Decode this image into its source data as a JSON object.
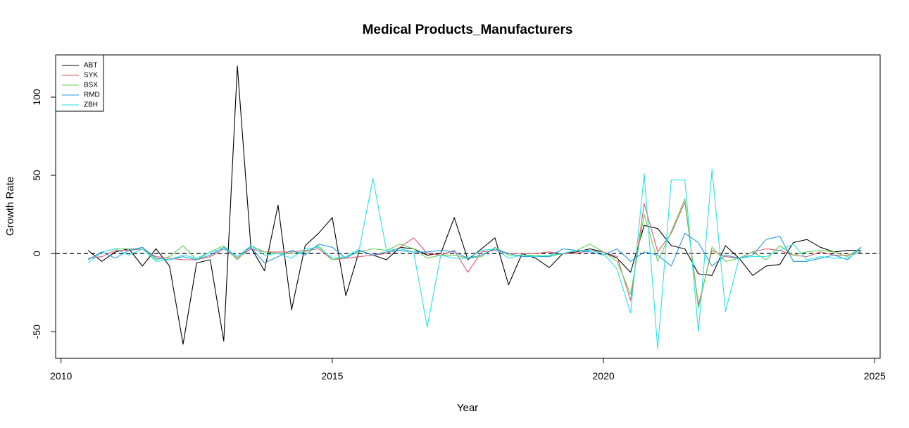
{
  "chart_data": {
    "type": "line",
    "title": "Medical Products_Manufacturers",
    "xlabel": "Year",
    "ylabel": "Growth Rate",
    "xlim": [
      2009.9,
      2025.1
    ],
    "ylim": [
      -67,
      127
    ],
    "x_ticks": [
      2010,
      2015,
      2020,
      2025
    ],
    "y_ticks": [
      -50,
      0,
      50,
      100
    ],
    "reference_line": 0,
    "legend_position": "top-left",
    "x": [
      2010.5,
      2010.75,
      2011,
      2011.25,
      2011.5,
      2011.75,
      2012,
      2012.25,
      2012.5,
      2012.75,
      2013,
      2013.25,
      2013.5,
      2013.75,
      2014,
      2014.25,
      2014.5,
      2014.75,
      2015,
      2015.25,
      2015.5,
      2015.75,
      2016,
      2016.25,
      2016.5,
      2016.75,
      2017,
      2017.25,
      2017.5,
      2017.75,
      2018,
      2018.25,
      2018.5,
      2018.75,
      2019,
      2019.25,
      2019.5,
      2019.75,
      2020,
      2020.25,
      2020.5,
      2020.75,
      2021,
      2021.25,
      2021.5,
      2021.75,
      2022,
      2022.25,
      2022.5,
      2022.75,
      2023,
      2023.25,
      2023.5,
      2023.75,
      2024,
      2024.25,
      2024.5,
      2024.75
    ],
    "series": [
      {
        "name": "ABT",
        "color": "#000000",
        "values": [
          2,
          -5,
          1,
          3,
          -8,
          3,
          -8,
          -58,
          -6,
          -4,
          -56,
          120,
          4,
          -11,
          31,
          -36,
          5,
          13,
          23,
          -27,
          2,
          -1,
          -4,
          4,
          3,
          -1,
          0,
          23,
          -4,
          3,
          10,
          -20,
          0,
          -3,
          -9,
          0,
          1,
          3,
          1,
          -3,
          -12,
          18,
          16,
          5,
          3,
          -13,
          -14,
          5,
          -3,
          -14,
          -8,
          -7,
          7,
          9,
          4,
          1,
          2,
          2
        ]
      },
      {
        "name": "SYK",
        "color": "#DF536B",
        "values": [
          -3,
          -2,
          2,
          2,
          3,
          -2,
          -3,
          -4,
          -4,
          -2,
          3,
          -3,
          3,
          1,
          1,
          1,
          2,
          3,
          -4,
          -3,
          -2,
          -1,
          0,
          4,
          10,
          0,
          -1,
          2,
          -12,
          1,
          2,
          0,
          0,
          0,
          1,
          0,
          0,
          2,
          1,
          -2,
          -30,
          32,
          1,
          13,
          33,
          -33,
          2,
          -2,
          -3,
          1,
          3,
          2,
          -1,
          -2,
          1,
          -1,
          -1,
          1
        ]
      },
      {
        "name": "BSX",
        "color": "#61D04F",
        "values": [
          -4,
          1,
          3,
          3,
          3,
          -4,
          -2,
          5,
          -4,
          1,
          5,
          -4,
          5,
          1,
          0,
          0,
          1,
          5,
          -4,
          -2,
          1,
          3,
          2,
          6,
          3,
          -3,
          -1,
          -1,
          -3,
          -2,
          4,
          -1,
          -1,
          -1,
          -2,
          0,
          2,
          6,
          1,
          -5,
          -26,
          25,
          -5,
          14,
          35,
          -35,
          4,
          -5,
          -3,
          1,
          -4,
          5,
          -1,
          1,
          2,
          1,
          -2,
          4
        ]
      },
      {
        "name": "RMD",
        "color": "#2297E6",
        "values": [
          -4,
          1,
          -3,
          2,
          4,
          -3,
          -4,
          -2,
          -4,
          -1,
          4,
          -2,
          4,
          -6,
          -2,
          2,
          -1,
          6,
          4,
          -3,
          2,
          -1,
          1,
          2,
          1,
          1,
          2,
          1,
          -3,
          -1,
          3,
          0,
          -2,
          -2,
          -2,
          3,
          2,
          1,
          -1,
          3,
          -5,
          1,
          -1,
          -8,
          13,
          7,
          -8,
          -1,
          -3,
          -1,
          9,
          11,
          -5,
          -5,
          -3,
          -1,
          -4,
          4
        ]
      },
      {
        "name": "ZBH",
        "color": "#28E2E5",
        "values": [
          -6,
          1,
          3,
          -1,
          3,
          -5,
          -4,
          -1,
          -3,
          1,
          3,
          -2,
          5,
          -1,
          0,
          -3,
          3,
          4,
          -3,
          -2,
          3,
          48,
          2,
          3,
          1,
          -47,
          -1,
          -3,
          -3,
          2,
          3,
          -3,
          -1,
          -2,
          -1,
          0,
          2,
          2,
          0,
          -10,
          -38,
          51,
          -61,
          47,
          47,
          -50,
          54,
          -37,
          -3,
          -2,
          -2,
          2,
          6,
          -4,
          -2,
          -3,
          -3,
          2
        ]
      }
    ]
  }
}
